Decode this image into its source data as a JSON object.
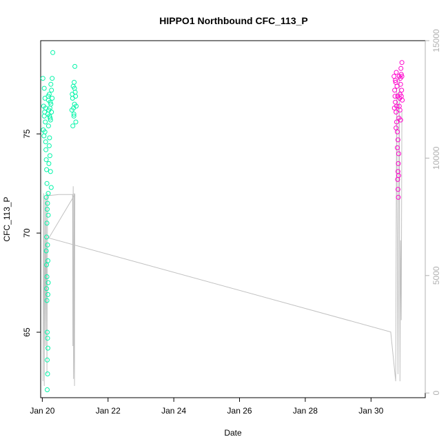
{
  "chart_data": {
    "type": "scatter",
    "title": "HIPPO1 Northbound CFC_113_P",
    "xlabel": "Date",
    "ylabel": "CFC_113_P",
    "xlim": [
      19.95,
      31.65
    ],
    "ylim": [
      61.7,
      79.7
    ],
    "y2lim": [
      -200,
      15000
    ],
    "x_ticks": [
      {
        "value": 20,
        "label": "Jan 20"
      },
      {
        "value": 22,
        "label": "Jan 22"
      },
      {
        "value": 24,
        "label": "Jan 24"
      },
      {
        "value": 26,
        "label": "Jan 26"
      },
      {
        "value": 28,
        "label": "Jan 28"
      },
      {
        "value": 30,
        "label": "Jan 30"
      }
    ],
    "y_ticks": [
      65,
      70,
      75
    ],
    "y2_ticks": [
      0,
      5000,
      10000,
      15000
    ],
    "grid": false,
    "legend": "none",
    "colors": {
      "early_points": "#00f5a8",
      "late_points": "#ff00cc",
      "altitude_line": "#c0c0c0"
    },
    "series": [
      {
        "axis": "left",
        "color": "#00f5a8",
        "points": [
          [
            20.02,
            77.8
          ],
          [
            20.04,
            76.4
          ],
          [
            20.06,
            75.9
          ],
          [
            20.08,
            76.8
          ],
          [
            20.03,
            75.2
          ],
          [
            20.05,
            74.9
          ],
          [
            20.07,
            76.1
          ],
          [
            20.09,
            75.6
          ],
          [
            20.1,
            74.6
          ],
          [
            20.11,
            74.2
          ],
          [
            20.12,
            73.7
          ],
          [
            20.13,
            73.2
          ],
          [
            20.14,
            72.5
          ],
          [
            20.12,
            71.8
          ],
          [
            20.15,
            71.2
          ],
          [
            20.14,
            70.5
          ],
          [
            20.13,
            69.8
          ],
          [
            20.12,
            69.1
          ],
          [
            20.13,
            68.4
          ],
          [
            20.14,
            67.8
          ],
          [
            20.13,
            67.2
          ],
          [
            20.14,
            66.6
          ],
          [
            20.15,
            65.0
          ],
          [
            20.16,
            64.7
          ],
          [
            20.17,
            64.2
          ],
          [
            20.15,
            63.6
          ],
          [
            20.16,
            62.9
          ],
          [
            20.15,
            62.1
          ],
          [
            20.18,
            72.0
          ],
          [
            20.2,
            73.5
          ],
          [
            20.22,
            74.8
          ],
          [
            20.24,
            75.8
          ],
          [
            20.26,
            76.5
          ],
          [
            20.28,
            77.2
          ],
          [
            20.3,
            77.8
          ],
          [
            20.32,
            79.1
          ],
          [
            20.18,
            76.9
          ],
          [
            20.2,
            76.2
          ],
          [
            20.22,
            75.9
          ],
          [
            20.24,
            76.6
          ],
          [
            20.26,
            77.5
          ],
          [
            20.28,
            76.1
          ],
          [
            20.3,
            76.8
          ],
          [
            20.06,
            77.3
          ],
          [
            20.08,
            75.1
          ],
          [
            20.1,
            76.3
          ],
          [
            20.17,
            76.0
          ],
          [
            20.19,
            75.4
          ],
          [
            20.21,
            74.4
          ],
          [
            20.23,
            73.9
          ],
          [
            20.25,
            73.1
          ],
          [
            20.27,
            72.3
          ],
          [
            20.16,
            71.5
          ],
          [
            20.18,
            70.9
          ],
          [
            20.16,
            69.4
          ],
          [
            20.17,
            68.6
          ],
          [
            20.18,
            67.5
          ],
          [
            20.17,
            66.9
          ],
          [
            20.19,
            76.7
          ],
          [
            20.21,
            77.0
          ],
          [
            20.23,
            76.3
          ],
          [
            20.25,
            75.7
          ],
          [
            20.9,
            76.2
          ],
          [
            20.92,
            76.8
          ],
          [
            20.94,
            77.4
          ],
          [
            20.96,
            75.9
          ],
          [
            20.98,
            76.5
          ],
          [
            21.0,
            77.1
          ],
          [
            21.02,
            75.6
          ],
          [
            20.93,
            75.4
          ],
          [
            20.95,
            76.3
          ],
          [
            20.97,
            77.6
          ],
          [
            20.99,
            78.4
          ],
          [
            21.01,
            76.9
          ],
          [
            20.91,
            77.0
          ],
          [
            21.03,
            76.4
          ],
          [
            20.96,
            76.0
          ],
          [
            20.98,
            77.3
          ]
        ]
      },
      {
        "axis": "left",
        "color": "#ff00cc",
        "points": [
          [
            30.7,
            77.9
          ],
          [
            30.72,
            77.2
          ],
          [
            30.74,
            76.6
          ],
          [
            30.76,
            76.1
          ],
          [
            30.78,
            75.6
          ],
          [
            30.8,
            75.1
          ],
          [
            30.82,
            74.7
          ],
          [
            30.84,
            74.0
          ],
          [
            30.83,
            73.5
          ],
          [
            30.82,
            73.1
          ],
          [
            30.81,
            72.7
          ],
          [
            30.82,
            72.2
          ],
          [
            30.83,
            71.8
          ],
          [
            30.85,
            75.8
          ],
          [
            30.86,
            76.4
          ],
          [
            30.88,
            77.0
          ],
          [
            30.9,
            77.5
          ],
          [
            30.92,
            78.0
          ],
          [
            30.94,
            78.6
          ],
          [
            30.91,
            78.3
          ],
          [
            30.89,
            77.8
          ],
          [
            30.87,
            76.8
          ],
          [
            30.73,
            76.9
          ],
          [
            30.75,
            77.6
          ],
          [
            30.77,
            78.1
          ],
          [
            30.79,
            77.4
          ],
          [
            30.81,
            76.9
          ],
          [
            30.71,
            76.3
          ],
          [
            30.93,
            77.2
          ],
          [
            30.95,
            76.7
          ],
          [
            30.76,
            75.3
          ],
          [
            30.8,
            74.3
          ],
          [
            30.84,
            72.9
          ],
          [
            30.88,
            76.2
          ],
          [
            30.9,
            75.7
          ],
          [
            30.92,
            76.9
          ],
          [
            30.74,
            77.7
          ],
          [
            30.78,
            76.4
          ],
          [
            30.86,
            77.9
          ],
          [
            30.94,
            77.9
          ]
        ]
      },
      {
        "axis": "right",
        "color": "#c0c0c0",
        "points": [
          [
            20.02,
            500
          ],
          [
            20.04,
            8500
          ],
          [
            20.06,
            300
          ],
          [
            20.08,
            8300
          ],
          [
            20.1,
            2000
          ],
          [
            20.12,
            8400
          ],
          [
            20.14,
            800
          ],
          [
            20.16,
            8500
          ],
          [
            20.18,
            8400
          ],
          [
            20.5,
            8450
          ],
          [
            20.8,
            8450
          ],
          [
            20.92,
            8450
          ],
          [
            20.93,
            2000
          ],
          [
            20.94,
            8800
          ],
          [
            20.95,
            600
          ],
          [
            20.96,
            2000
          ],
          [
            20.97,
            8500
          ],
          [
            20.98,
            300
          ],
          [
            20.99,
            8450
          ],
          [
            20.2,
            6600
          ],
          [
            30.6,
            2600
          ],
          [
            30.75,
            500
          ],
          [
            30.78,
            13000
          ],
          [
            30.82,
            800
          ],
          [
            30.86,
            13500
          ],
          [
            30.88,
            500
          ],
          [
            30.9,
            6500
          ],
          [
            30.92,
            3100
          ],
          [
            30.94,
            12000
          ]
        ]
      }
    ]
  }
}
